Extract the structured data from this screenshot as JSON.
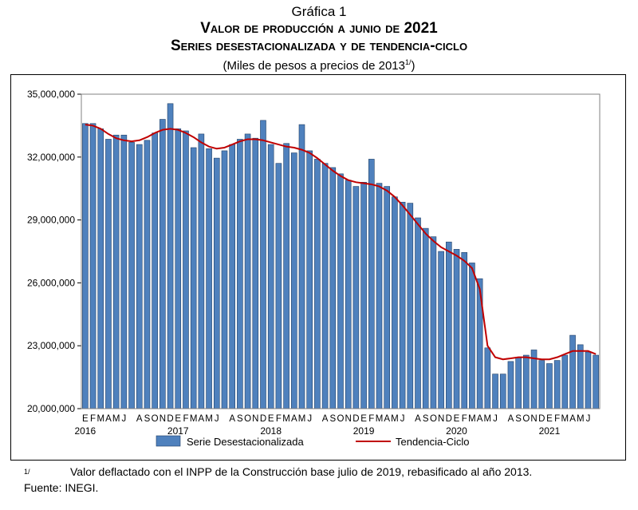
{
  "header": {
    "chart_number": "Gráfica 1",
    "title": "Valor de producción a junio de 2021",
    "subtitle": "Series desestacionalizada y de tendencia-ciclo",
    "units_main": "(Miles de pesos a precios de 2013",
    "units_sup": "1/",
    "units_close": ")"
  },
  "footer": {
    "note_mark": "1/",
    "note_text": "Valor deflactado con el INPP de la Construcción base julio de 2019, rebasificado al año 2013.",
    "source": "Fuente: INEGI."
  },
  "colors": {
    "bar_fill": "#4F81BD",
    "bar_stroke": "#1F3F66",
    "trend_line": "#C00000",
    "plot_border": "#808080"
  },
  "chart_data": {
    "type": "bar",
    "ylim": [
      20000000,
      35000000
    ],
    "yticks": [
      "20,000,000",
      "23,000,000",
      "26,000,000",
      "29,000,000",
      "32,000,000",
      "35,000,000"
    ],
    "ytick_values": [
      20000000,
      23000000,
      26000000,
      29000000,
      32000000,
      35000000
    ],
    "month_letters": [
      "E",
      "F",
      "M",
      "A",
      "M",
      "J",
      "J",
      "A",
      "S",
      "O",
      "N",
      "D"
    ],
    "years": [
      "2016",
      "2017",
      "2018",
      "2019",
      "2020",
      "2021"
    ],
    "grid": false,
    "legend_position": "bottom",
    "series": [
      {
        "name": "Serie Desestacionalizada",
        "kind": "bar",
        "values": [
          33600000,
          33600000,
          33350000,
          32850000,
          33050000,
          33050000,
          32700000,
          32600000,
          32800000,
          33150000,
          33800000,
          34550000,
          33350000,
          33250000,
          32450000,
          33100000,
          32400000,
          31950000,
          32300000,
          32600000,
          32850000,
          33100000,
          32900000,
          33750000,
          32600000,
          31700000,
          32650000,
          32200000,
          33550000,
          32300000,
          31900000,
          31700000,
          31500000,
          31200000,
          30900000,
          30600000,
          30800000,
          31900000,
          30750000,
          30600000,
          30100000,
          29850000,
          29800000,
          29100000,
          28600000,
          28200000,
          27500000,
          27950000,
          27600000,
          27450000,
          26950000,
          26200000,
          22900000,
          21650000,
          21650000,
          22250000,
          22450000,
          22550000,
          22800000,
          22300000,
          22150000,
          22300000,
          22550000,
          23500000,
          23050000,
          22700000,
          22550000
        ]
      },
      {
        "name": "Tendencia-Ciclo",
        "kind": "line",
        "values": [
          33550000,
          33500000,
          33350000,
          33100000,
          32900000,
          32800000,
          32750000,
          32800000,
          32950000,
          33150000,
          33300000,
          33350000,
          33300000,
          33150000,
          32950000,
          32700000,
          32500000,
          32400000,
          32450000,
          32600000,
          32750000,
          32850000,
          32850000,
          32800000,
          32700000,
          32600000,
          32500000,
          32450000,
          32350000,
          32200000,
          31950000,
          31650000,
          31350000,
          31100000,
          30900000,
          30800000,
          30750000,
          30700000,
          30600000,
          30400000,
          30100000,
          29700000,
          29250000,
          28800000,
          28350000,
          28000000,
          27700000,
          27500000,
          27300000,
          27050000,
          26700000,
          25700000,
          23000000,
          22450000,
          22350000,
          22400000,
          22450000,
          22450000,
          22400000,
          22350000,
          22350000,
          22450000,
          22600000,
          22750000,
          22750000,
          22750000,
          22600000
        ]
      }
    ]
  }
}
